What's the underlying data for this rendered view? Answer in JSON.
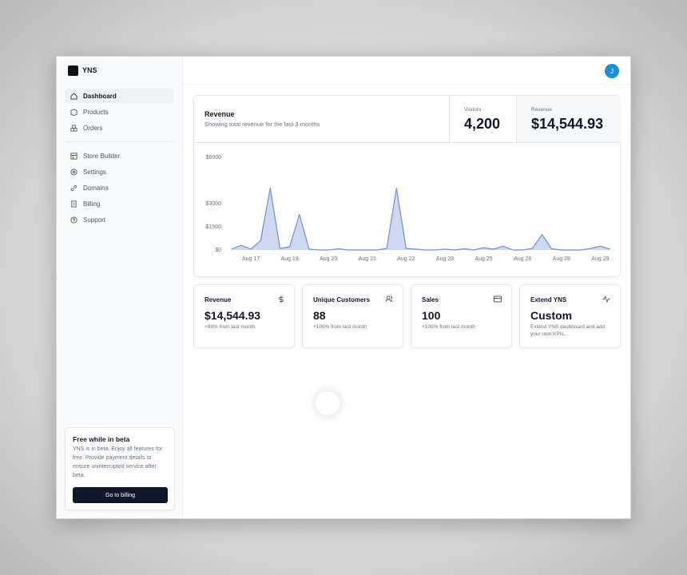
{
  "app": {
    "brand": "YNS",
    "avatar": "J"
  },
  "nav_main": [
    "Dashboard",
    "Products",
    "Orders"
  ],
  "nav_secondary": [
    "Store Builder",
    "Settings",
    "Domains",
    "Billing",
    "Support"
  ],
  "beta": {
    "title": "Free while in beta",
    "text": "YNS is in beta. Enjoy all features for free. Provide payment details to ensure uninterrupted service after beta.",
    "button": "Go to billing"
  },
  "stats": [
    {
      "label": "Visitors",
      "value": "4,200"
    },
    {
      "label": "Revenue",
      "value": "$14,544.93"
    }
  ],
  "cards": [
    {
      "title": "Revenue",
      "value": "$14,544.93",
      "note": "+99% from last month"
    },
    {
      "title": "Unique Customers",
      "value": "88",
      "note": "+100% from last month"
    },
    {
      "title": "Sales",
      "value": "100",
      "note": "+100% from last month"
    },
    {
      "title": "Extend YNS",
      "value": "Custom",
      "note": "Extend YNS dashboard and add your own KPIs..."
    }
  ],
  "chart_data": {
    "type": "area",
    "title": "Revenue",
    "subtitle": "Showing total revenue for the last 3 months",
    "categories": [
      null,
      null,
      "Aug 17",
      null,
      null,
      null,
      "Aug 19",
      null,
      null,
      null,
      "Aug 20",
      null,
      null,
      null,
      "Aug 21",
      null,
      null,
      null,
      "Aug 22",
      null,
      null,
      null,
      "Aug 23",
      null,
      null,
      null,
      "Aug 25",
      null,
      null,
      null,
      "Aug 26",
      null,
      null,
      null,
      "Aug 28",
      null,
      null,
      null,
      "Aug 29",
      null
    ],
    "values": [
      50,
      300,
      50,
      600,
      4000,
      100,
      200,
      2300,
      50,
      0,
      0,
      80,
      0,
      0,
      0,
      0,
      100,
      4000,
      100,
      50,
      0,
      0,
      50,
      0,
      80,
      0,
      150,
      50,
      250,
      0,
      0,
      100,
      1000,
      80,
      0,
      0,
      0,
      100,
      250,
      50
    ],
    "color": "#6f8fd8",
    "ylim": [
      0,
      6000
    ],
    "yticks": [
      {
        "value": 0,
        "label": "$0"
      },
      {
        "value": 1500,
        "label": "$1500"
      },
      {
        "value": 3000,
        "label": "$3000"
      },
      {
        "value": 6000,
        "label": "$6000"
      }
    ],
    "grid": false
  }
}
